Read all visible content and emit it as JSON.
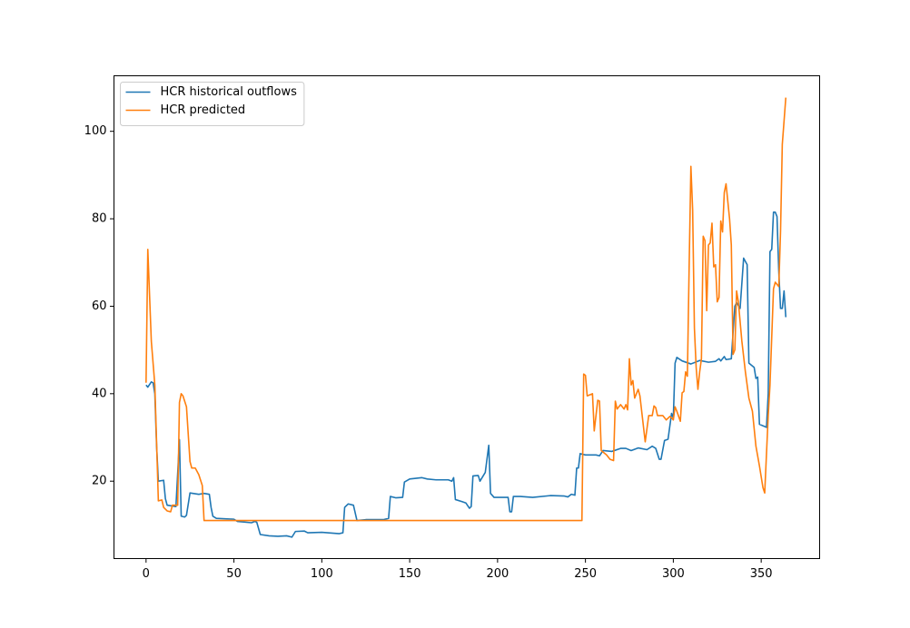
{
  "chart_data": {
    "type": "line",
    "xlim": [
      -18.25,
      383.25
    ],
    "ylim": [
      2.3,
      112.7
    ],
    "xticks": [
      0,
      50,
      100,
      150,
      200,
      250,
      300,
      350
    ],
    "yticks": [
      20,
      40,
      60,
      80,
      100
    ],
    "grid": false,
    "legend": "upper left",
    "series": [
      {
        "name": "HCR historical outflows",
        "color": "#1f77b4",
        "x": [
          0,
          1,
          3,
          4,
          5,
          6,
          7,
          10,
          11,
          12,
          17,
          19,
          20,
          22,
          23,
          25,
          30,
          33,
          36,
          37,
          38,
          40,
          50,
          52,
          60,
          62,
          63,
          65,
          70,
          75,
          80,
          83,
          85,
          90,
          92,
          100,
          110,
          112,
          113,
          115,
          118,
          120,
          125,
          130,
          135,
          138,
          139,
          142,
          146,
          147,
          150,
          157,
          160,
          165,
          172,
          174,
          175,
          176,
          180,
          182,
          184,
          185,
          186,
          189,
          190,
          193,
          195,
          196,
          198,
          206,
          207,
          208,
          209,
          213,
          220,
          230,
          238,
          240,
          242,
          244,
          245,
          246,
          247,
          250,
          256,
          258,
          260,
          265,
          270,
          273,
          276,
          280,
          285,
          288,
          290,
          292,
          293,
          295,
          297,
          299,
          300,
          301,
          302,
          305,
          310,
          315,
          320,
          324,
          326,
          327,
          329,
          330,
          333,
          335,
          336,
          338,
          340,
          342,
          343,
          346,
          347,
          348,
          349,
          352,
          353,
          354,
          355,
          356,
          357,
          358,
          359,
          360,
          361,
          362,
          363,
          364
        ],
        "values": [
          42,
          41.5,
          42.7,
          42.5,
          40,
          28,
          20,
          20.2,
          16,
          14.5,
          14.2,
          29.5,
          12,
          11.8,
          12.2,
          17.3,
          17,
          17.2,
          17,
          14,
          12,
          11.5,
          11.3,
          10.8,
          10.5,
          10.8,
          10.6,
          7.8,
          7.5,
          7.4,
          7.5,
          7.2,
          8.5,
          8.6,
          8.2,
          8.3,
          8.0,
          8.2,
          14,
          14.8,
          14.5,
          11,
          11.2,
          11.2,
          11.2,
          11.5,
          16.5,
          16.2,
          16.3,
          19.8,
          20.5,
          20.8,
          20.5,
          20.3,
          20.3,
          20,
          20.8,
          15.8,
          15.3,
          15,
          13.8,
          14.2,
          21.2,
          21.3,
          20,
          22,
          28.2,
          17.2,
          16.3,
          16.3,
          13,
          13,
          16.5,
          16.5,
          16.3,
          16.7,
          16.6,
          16.4,
          17,
          16.8,
          23,
          23,
          26.3,
          26,
          26,
          25.8,
          27,
          26.8,
          27.5,
          27.5,
          27,
          27.6,
          27.2,
          28,
          27.5,
          25,
          25,
          29.3,
          29.6,
          35.5,
          34.5,
          47,
          48.3,
          47.5,
          46.8,
          47.6,
          47.2,
          47.4,
          48,
          47.5,
          48.5,
          47.8,
          48,
          60,
          60.8,
          59.5,
          71,
          69.5,
          47,
          46,
          43.5,
          43.8,
          33,
          32.5,
          32.3,
          40,
          72.5,
          73,
          81.5,
          81.5,
          80.5,
          68,
          59.5,
          59.5,
          63.5,
          57.5
        ]
      },
      {
        "name": "HCR predicted",
        "color": "#ff7f0e",
        "x": [
          0,
          1,
          3,
          5,
          7,
          9,
          10,
          12,
          14,
          15,
          18,
          19,
          20,
          21,
          23,
          25,
          26,
          28,
          30,
          32,
          33,
          248,
          249,
          250,
          251,
          254,
          255,
          257,
          258,
          259,
          262,
          264,
          266,
          267,
          268,
          270,
          272,
          273,
          274,
          275,
          276,
          277,
          278,
          280,
          281,
          284,
          286,
          288,
          289,
          290,
          291,
          294,
          296,
          298,
          299,
          300,
          301,
          302,
          304,
          305,
          306,
          307,
          308,
          309,
          310,
          311,
          312,
          313,
          314,
          315,
          316,
          317,
          318,
          319,
          320,
          321,
          322,
          323,
          324,
          325,
          326,
          327,
          328,
          329,
          330,
          332,
          333,
          334,
          335,
          336,
          337,
          339,
          341,
          343,
          345,
          347,
          349,
          351,
          352,
          354,
          355,
          357,
          358,
          360,
          361,
          362,
          364
        ],
        "values": [
          42.5,
          73,
          52,
          42,
          15.5,
          15.7,
          14,
          13.2,
          13,
          14.5,
          14.5,
          38,
          40,
          39.5,
          37,
          24.5,
          23,
          23,
          21.5,
          19,
          11,
          11,
          44.5,
          44.2,
          39.5,
          40,
          31.5,
          38.5,
          38.3,
          27,
          26,
          25,
          24.7,
          38.3,
          36.5,
          37.5,
          36.5,
          37.5,
          36.3,
          48,
          42,
          43,
          39,
          41,
          39.5,
          29,
          35,
          35,
          37.2,
          36.8,
          35,
          35,
          34,
          34.8,
          34.5,
          34,
          37,
          36,
          33.7,
          40.2,
          40.5,
          45,
          44,
          69,
          92,
          82,
          55,
          46,
          41,
          45,
          48,
          76,
          75,
          59,
          74,
          74.5,
          79,
          69,
          69.5,
          61,
          62,
          79.5,
          77,
          86,
          88,
          80,
          74,
          49,
          50,
          63.5,
          61,
          52,
          45,
          39,
          36,
          28,
          23.5,
          18.5,
          17.3,
          35,
          42,
          64,
          65.5,
          64.5,
          77,
          97,
          107.7
        ]
      }
    ]
  }
}
